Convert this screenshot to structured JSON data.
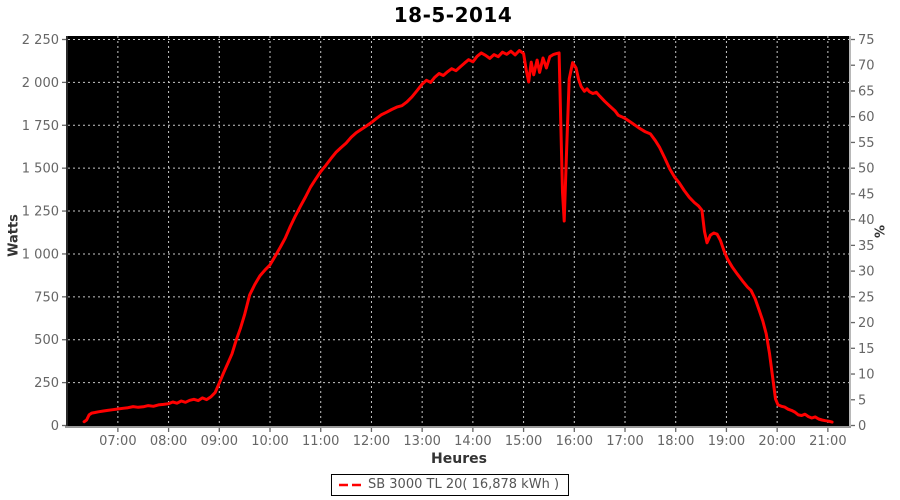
{
  "chart_data": {
    "type": "line",
    "title": "18-5-2014",
    "xlabel": "Heures",
    "ylabel": "Watts",
    "y2label": "%",
    "grid": true,
    "legend_position": "bottom",
    "plot_background": "#000000",
    "grid_color": "#c8c8c8",
    "axis_text_color": "#666666",
    "xlim_time": [
      "06:01",
      "21:25"
    ],
    "ylim": [
      0,
      2265
    ],
    "y2lim": [
      0,
      75.5
    ],
    "x_tick_labels": [
      "07:00",
      "08:00",
      "09:00",
      "10:00",
      "11:00",
      "12:00",
      "13:00",
      "14:00",
      "15:00",
      "16:00",
      "17:00",
      "18:00",
      "19:00",
      "20:00",
      "21:00"
    ],
    "y_tick_values": [
      0,
      250,
      500,
      750,
      1000,
      1250,
      1500,
      1750,
      2000,
      2250
    ],
    "y_tick_labels": [
      "0",
      "250",
      "500",
      "750",
      "1 000",
      "1 250",
      "1 500",
      "1 750",
      "2 000",
      "2 250"
    ],
    "y2_tick_values": [
      0,
      5,
      10,
      15,
      20,
      25,
      30,
      35,
      40,
      45,
      50,
      55,
      60,
      65,
      70,
      75
    ],
    "series": [
      {
        "name": "SB 3000 TL 20( 16,878 kWh )",
        "color": "#ff0000",
        "points": [
          [
            "06:20",
            22
          ],
          [
            "06:23",
            32
          ],
          [
            "06:26",
            62
          ],
          [
            "06:29",
            72
          ],
          [
            "06:33",
            76
          ],
          [
            "06:37",
            80
          ],
          [
            "06:42",
            84
          ],
          [
            "06:48",
            88
          ],
          [
            "06:54",
            92
          ],
          [
            "07:00",
            96
          ],
          [
            "07:06",
            100
          ],
          [
            "07:12",
            104
          ],
          [
            "07:18",
            110
          ],
          [
            "07:24",
            106
          ],
          [
            "07:30",
            109
          ],
          [
            "07:36",
            116
          ],
          [
            "07:42",
            112
          ],
          [
            "07:48",
            120
          ],
          [
            "07:54",
            123
          ],
          [
            "08:00",
            127
          ],
          [
            "08:05",
            137
          ],
          [
            "08:10",
            130
          ],
          [
            "08:15",
            143
          ],
          [
            "08:20",
            135
          ],
          [
            "08:25",
            147
          ],
          [
            "08:30",
            153
          ],
          [
            "08:35",
            145
          ],
          [
            "08:40",
            161
          ],
          [
            "08:45",
            151
          ],
          [
            "08:50",
            167
          ],
          [
            "08:55",
            192
          ],
          [
            "09:00",
            248
          ],
          [
            "09:05",
            306
          ],
          [
            "09:10",
            362
          ],
          [
            "09:15",
            418
          ],
          [
            "09:20",
            497
          ],
          [
            "09:25",
            566
          ],
          [
            "09:30",
            648
          ],
          [
            "09:36",
            762
          ],
          [
            "09:42",
            822
          ],
          [
            "09:48",
            872
          ],
          [
            "09:54",
            906
          ],
          [
            "10:00",
            936
          ],
          [
            "10:06",
            986
          ],
          [
            "10:12",
            1038
          ],
          [
            "10:18",
            1092
          ],
          [
            "10:24",
            1160
          ],
          [
            "10:30",
            1222
          ],
          [
            "10:36",
            1278
          ],
          [
            "10:42",
            1332
          ],
          [
            "10:48",
            1390
          ],
          [
            "10:54",
            1436
          ],
          [
            "11:00",
            1480
          ],
          [
            "11:06",
            1516
          ],
          [
            "11:12",
            1556
          ],
          [
            "11:18",
            1592
          ],
          [
            "11:24",
            1620
          ],
          [
            "11:30",
            1646
          ],
          [
            "11:36",
            1680
          ],
          [
            "11:42",
            1706
          ],
          [
            "11:48",
            1726
          ],
          [
            "11:54",
            1746
          ],
          [
            "12:00",
            1766
          ],
          [
            "12:06",
            1790
          ],
          [
            "12:12",
            1812
          ],
          [
            "12:18",
            1826
          ],
          [
            "12:24",
            1842
          ],
          [
            "12:30",
            1856
          ],
          [
            "12:36",
            1864
          ],
          [
            "12:42",
            1886
          ],
          [
            "12:48",
            1916
          ],
          [
            "12:54",
            1952
          ],
          [
            "13:00",
            1990
          ],
          [
            "13:05",
            2012
          ],
          [
            "13:10",
            2000
          ],
          [
            "13:15",
            2030
          ],
          [
            "13:20",
            2052
          ],
          [
            "13:25",
            2040
          ],
          [
            "13:30",
            2062
          ],
          [
            "13:35",
            2080
          ],
          [
            "13:40",
            2068
          ],
          [
            "13:45",
            2090
          ],
          [
            "13:50",
            2112
          ],
          [
            "13:55",
            2132
          ],
          [
            "14:00",
            2120
          ],
          [
            "14:05",
            2152
          ],
          [
            "14:10",
            2172
          ],
          [
            "14:15",
            2158
          ],
          [
            "14:20",
            2140
          ],
          [
            "14:25",
            2162
          ],
          [
            "14:30",
            2150
          ],
          [
            "14:35",
            2176
          ],
          [
            "14:40",
            2164
          ],
          [
            "14:45",
            2182
          ],
          [
            "14:50",
            2160
          ],
          [
            "14:55",
            2186
          ],
          [
            "15:00",
            2168
          ],
          [
            "15:03",
            2076
          ],
          [
            "15:06",
            2002
          ],
          [
            "15:09",
            2118
          ],
          [
            "15:12",
            2044
          ],
          [
            "15:16",
            2130
          ],
          [
            "15:19",
            2058
          ],
          [
            "15:23",
            2142
          ],
          [
            "15:27",
            2084
          ],
          [
            "15:31",
            2150
          ],
          [
            "15:35",
            2162
          ],
          [
            "15:39",
            2168
          ],
          [
            "15:42",
            2172
          ],
          [
            "15:44",
            1760
          ],
          [
            "15:46",
            1360
          ],
          [
            "15:48",
            1192
          ],
          [
            "15:51",
            1620
          ],
          [
            "15:54",
            2020
          ],
          [
            "15:58",
            2115
          ],
          [
            "16:02",
            2085
          ],
          [
            "16:05",
            2020
          ],
          [
            "16:08",
            1976
          ],
          [
            "16:12",
            1948
          ],
          [
            "16:15",
            1962
          ],
          [
            "16:18",
            1945
          ],
          [
            "16:22",
            1935
          ],
          [
            "16:26",
            1942
          ],
          [
            "16:30",
            1920
          ],
          [
            "16:36",
            1890
          ],
          [
            "16:42",
            1862
          ],
          [
            "16:48",
            1835
          ],
          [
            "16:52",
            1808
          ],
          [
            "16:56",
            1800
          ],
          [
            "17:00",
            1790
          ],
          [
            "17:06",
            1770
          ],
          [
            "17:12",
            1750
          ],
          [
            "17:18",
            1730
          ],
          [
            "17:24",
            1712
          ],
          [
            "17:30",
            1700
          ],
          [
            "17:36",
            1660
          ],
          [
            "17:41",
            1620
          ],
          [
            "17:47",
            1560
          ],
          [
            "17:53",
            1495
          ],
          [
            "17:59",
            1445
          ],
          [
            "18:04",
            1415
          ],
          [
            "18:10",
            1370
          ],
          [
            "18:16",
            1330
          ],
          [
            "18:22",
            1300
          ],
          [
            "18:27",
            1280
          ],
          [
            "18:31",
            1255
          ],
          [
            "18:34",
            1130
          ],
          [
            "18:37",
            1065
          ],
          [
            "18:41",
            1110
          ],
          [
            "18:45",
            1122
          ],
          [
            "18:49",
            1115
          ],
          [
            "18:53",
            1078
          ],
          [
            "18:57",
            1020
          ],
          [
            "19:01",
            972
          ],
          [
            "19:07",
            922
          ],
          [
            "19:13",
            882
          ],
          [
            "19:19",
            843
          ],
          [
            "19:25",
            806
          ],
          [
            "19:29",
            788
          ],
          [
            "19:34",
            738
          ],
          [
            "19:39",
            668
          ],
          [
            "19:43",
            610
          ],
          [
            "19:47",
            535
          ],
          [
            "19:51",
            420
          ],
          [
            "19:55",
            270
          ],
          [
            "19:58",
            155
          ],
          [
            "20:01",
            120
          ],
          [
            "20:05",
            112
          ],
          [
            "20:09",
            107
          ],
          [
            "20:13",
            95
          ],
          [
            "20:17",
            88
          ],
          [
            "20:21",
            78
          ],
          [
            "20:25",
            62
          ],
          [
            "20:29",
            58
          ],
          [
            "20:33",
            66
          ],
          [
            "20:37",
            52
          ],
          [
            "20:41",
            44
          ],
          [
            "20:45",
            50
          ],
          [
            "20:49",
            38
          ],
          [
            "20:53",
            32
          ],
          [
            "20:57",
            28
          ],
          [
            "21:01",
            25
          ],
          [
            "21:05",
            20
          ]
        ]
      }
    ]
  }
}
